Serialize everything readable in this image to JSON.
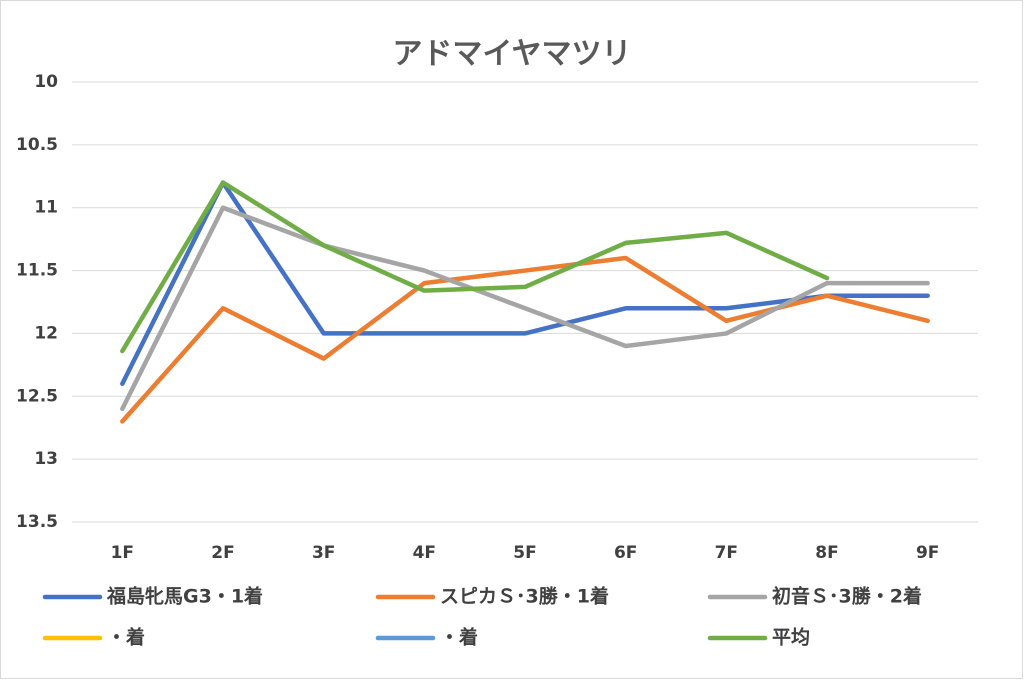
{
  "chart_data": {
    "type": "line",
    "title": "アドマイヤマツリ",
    "categories": [
      "1F",
      "2F",
      "3F",
      "4F",
      "5F",
      "6F",
      "7F",
      "8F",
      "9F"
    ],
    "series": [
      {
        "name": "福島牝馬G3・1着",
        "color": "#4472c4",
        "values": [
          12.4,
          10.8,
          12.0,
          12.0,
          12.0,
          11.8,
          11.8,
          11.7,
          11.7
        ]
      },
      {
        "name": "スピカＳ･3勝・1着",
        "color": "#ed7d31",
        "values": [
          12.7,
          11.8,
          12.2,
          11.6,
          11.5,
          11.4,
          11.9,
          11.7,
          11.9
        ]
      },
      {
        "name": "初音Ｓ･3勝・2着",
        "color": "#a5a5a5",
        "values": [
          12.6,
          11.0,
          11.3,
          11.5,
          11.8,
          12.1,
          12.0,
          11.6,
          11.6
        ]
      },
      {
        "name": "・着",
        "color": "#ffc000",
        "values": [
          null,
          null,
          null,
          null,
          null,
          null,
          null,
          null,
          null
        ]
      },
      {
        "name": "・着",
        "color": "#5b9bd5",
        "values": [
          null,
          null,
          null,
          null,
          null,
          null,
          null,
          null,
          null
        ]
      },
      {
        "name": "平均",
        "color": "#70ad47",
        "values": [
          12.14,
          10.8,
          11.3,
          11.66,
          11.63,
          11.28,
          11.2,
          11.56,
          null
        ]
      }
    ],
    "ylim": [
      10,
      13.5
    ],
    "yticks": [
      10,
      10.5,
      11,
      11.5,
      12,
      12.5,
      13,
      13.5
    ],
    "y_reversed": true,
    "grid": true,
    "legend": "bottom"
  }
}
